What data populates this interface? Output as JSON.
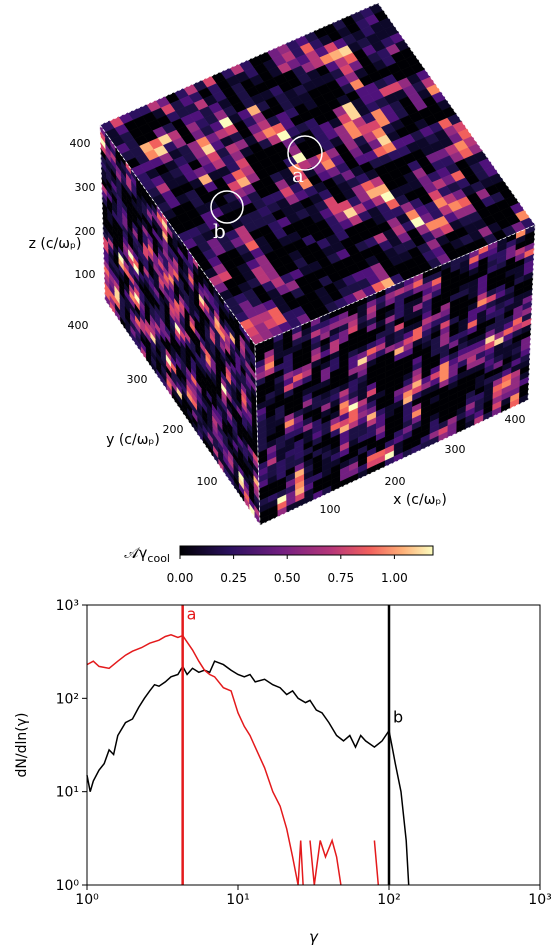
{
  "cube": {
    "x_label": "x (c/ωₚ)",
    "y_label": "y (c/ωₚ)",
    "z_label": "z (c/ωₚ)",
    "x_ticks": [
      "100",
      "200",
      "300",
      "400"
    ],
    "y_ticks": [
      "100",
      "200",
      "300",
      "400"
    ],
    "z_ticks": [
      "100",
      "200",
      "300",
      "400"
    ],
    "markers": [
      "a",
      "b"
    ]
  },
  "colorbar": {
    "label": "𝒜γ",
    "label_sub": "cool",
    "lim": [
      0,
      1.18
    ],
    "ticks": [
      {
        "value": 0,
        "label": "0.00"
      },
      {
        "value": 0.25,
        "label": "0.25"
      },
      {
        "value": 0.5,
        "label": "0.50"
      },
      {
        "value": 0.75,
        "label": "0.75"
      },
      {
        "value": 1,
        "label": "1.00"
      }
    ]
  },
  "chart_data": {
    "type": "line",
    "xlabel": "γ",
    "ylabel": "dN/dln(γ)",
    "log_x": true,
    "log_y": true,
    "xlim": [
      1,
      1000
    ],
    "ylim": [
      1,
      1000
    ],
    "xticks": [
      {
        "value": 1,
        "label": "10⁰"
      },
      {
        "value": 10,
        "label": "10¹"
      },
      {
        "value": 100,
        "label": "10²"
      },
      {
        "value": 1000,
        "label": "10³"
      }
    ],
    "yticks": [
      {
        "value": 1,
        "label": "10⁰"
      },
      {
        "value": 10,
        "label": "10¹"
      },
      {
        "value": 100,
        "label": "10²"
      },
      {
        "value": 1000,
        "label": "10³"
      }
    ],
    "series": [
      {
        "color": "#000000",
        "x": [
          1,
          1.05,
          1.1,
          1.2,
          1.3,
          1.4,
          1.5,
          1.6,
          1.8,
          2,
          2.2,
          2.4,
          2.6,
          2.8,
          3,
          3.3,
          3.6,
          4,
          4.3,
          4.6,
          5,
          5.5,
          6,
          6.5,
          7,
          8,
          9,
          10,
          11,
          12,
          13,
          15,
          17,
          19,
          21,
          23,
          25,
          28,
          30,
          33,
          36,
          40,
          45,
          50,
          55,
          60,
          65,
          70,
          80,
          90,
          100,
          105,
          110,
          120,
          130,
          135
        ],
        "values": [
          15,
          10,
          13,
          17,
          20,
          28,
          25,
          40,
          55,
          60,
          80,
          100,
          120,
          140,
          135,
          150,
          170,
          180,
          220,
          180,
          210,
          190,
          200,
          190,
          250,
          230,
          200,
          180,
          170,
          180,
          150,
          160,
          140,
          130,
          110,
          120,
          100,
          90,
          95,
          75,
          70,
          55,
          40,
          35,
          40,
          30,
          40,
          35,
          30,
          35,
          45,
          30,
          20,
          10,
          3,
          1
        ]
      },
      {
        "color": "#e41a1c",
        "x": [
          1,
          1.1,
          1.2,
          1.4,
          1.6,
          1.8,
          2,
          2.3,
          2.6,
          3,
          3.3,
          3.6,
          4,
          4.3,
          4.6,
          5,
          5.5,
          6,
          6.5,
          7,
          8,
          9,
          10,
          11,
          12,
          13,
          15,
          17,
          19,
          21,
          23,
          25,
          26,
          27,
          28,
          30,
          32,
          35,
          38,
          42,
          45,
          48,
          60,
          80,
          85
        ],
        "values": [
          230,
          250,
          220,
          210,
          250,
          290,
          320,
          350,
          390,
          420,
          460,
          480,
          450,
          470,
          400,
          330,
          250,
          200,
          180,
          170,
          130,
          120,
          70,
          50,
          40,
          30,
          18,
          10,
          7,
          4,
          2,
          1,
          3,
          1,
          null,
          3,
          1,
          3,
          2,
          3,
          2,
          1,
          null,
          3,
          1
        ]
      }
    ],
    "vlines": [
      {
        "x": 4.3,
        "color": "#e41a1c",
        "label": "a",
        "label_y": 700
      },
      {
        "x": 100,
        "color": "#000000",
        "label": "b",
        "label_y": 55
      }
    ]
  }
}
